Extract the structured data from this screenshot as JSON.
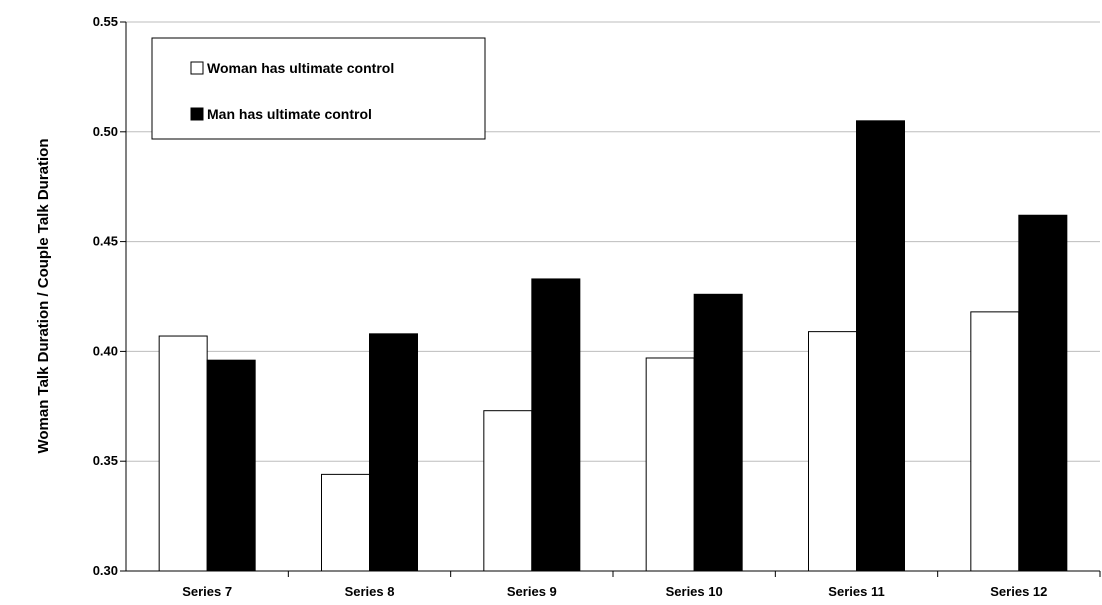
{
  "chart_data": {
    "type": "bar",
    "title": "",
    "xlabel": "",
    "ylabel": "Woman Talk Duration / Couple Talk Duration",
    "ylim": [
      0.3,
      0.55
    ],
    "yticks": [
      "0.30",
      "0.35",
      "0.40",
      "0.45",
      "0.50",
      "0.55"
    ],
    "ytick_values": [
      0.3,
      0.35,
      0.4,
      0.45,
      0.5,
      0.55
    ],
    "grid": true,
    "legend_position": "top-left",
    "categories": [
      "Series 7",
      "Series 8",
      "Series 9",
      "Series 10",
      "Series 11",
      "Series 12"
    ],
    "series": [
      {
        "name": "Woman has ultimate control",
        "color": "#ffffff",
        "values": [
          0.407,
          0.344,
          0.373,
          0.397,
          0.409,
          0.418
        ]
      },
      {
        "name": "Man has ultimate control",
        "color": "#000000",
        "values": [
          0.396,
          0.408,
          0.433,
          0.426,
          0.505,
          0.462
        ]
      }
    ]
  }
}
